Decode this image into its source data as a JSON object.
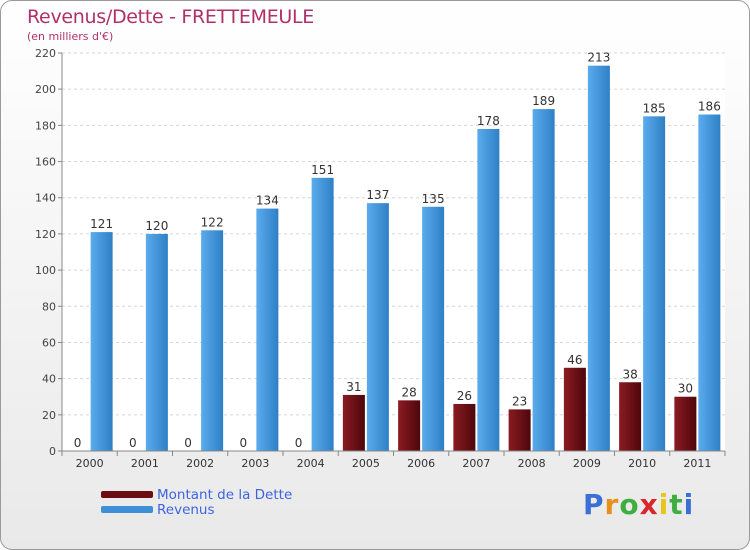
{
  "title": "Revenus/Dette - FRETTEMEULE",
  "subtitle": "(en milliers d'€)",
  "colors": {
    "debt": "#6b0d12",
    "revenue": "#3d8fd8"
  },
  "legend": [
    {
      "label": "Montant de la Dette",
      "color": "#6b0d12"
    },
    {
      "label": "Revenus",
      "color": "#3d8fd8"
    }
  ],
  "logo": {
    "letters": [
      "P",
      "r",
      "o",
      "x",
      "i",
      "t",
      "i"
    ],
    "colors": [
      "#3b6fd6",
      "#e8901a",
      "#3fae3f",
      "#d9262e",
      "#e8c51a",
      "#3fae3f",
      "#3b6fd6"
    ]
  },
  "chart_data": {
    "type": "bar",
    "categories": [
      "2000",
      "2001",
      "2002",
      "2003",
      "2004",
      "2005",
      "2006",
      "2007",
      "2008",
      "2009",
      "2010",
      "2011"
    ],
    "series": [
      {
        "name": "Montant de la Dette",
        "values": [
          0,
          0,
          0,
          0,
          0,
          31,
          28,
          26,
          23,
          46,
          38,
          30
        ]
      },
      {
        "name": "Revenus",
        "values": [
          121,
          120,
          122,
          134,
          151,
          137,
          135,
          178,
          189,
          213,
          185,
          186
        ]
      }
    ],
    "yticks": [
      0,
      20,
      40,
      60,
      80,
      100,
      120,
      140,
      160,
      180,
      200,
      220
    ],
    "ylim": [
      0,
      220
    ],
    "grid": true,
    "legend_position": "bottom-left"
  }
}
